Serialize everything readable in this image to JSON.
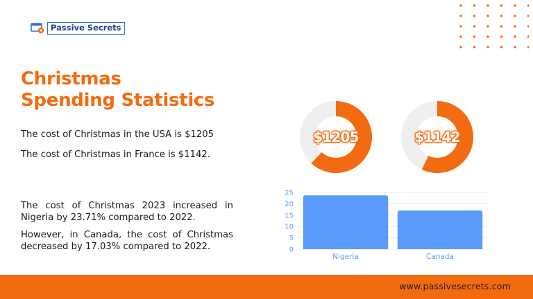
{
  "brand": {
    "logo_text": "Passive Secrets",
    "accent": "#f36b10",
    "logo_blue": "#2f6fd6"
  },
  "title": {
    "line1": "Christmas",
    "line2": "Spending Statistics"
  },
  "statements": {
    "usa": "The cost of Christmas in the USA is $1205",
    "france": "The cost of Christmas in France is $1142.",
    "nigeria": "The cost of Christmas 2023 increased in Nigeria by 23.71% compared to 2022.",
    "canada": "However, in Canada, the cost of Christmas decreased by 17.03% compared to 2022."
  },
  "footer": {
    "url": "www.passivesecrets.com"
  },
  "chart_data": [
    {
      "type": "pie",
      "label": "$1205",
      "fill_fraction": 0.62,
      "colors": {
        "fill": "#f36b10",
        "track": "#efefef"
      }
    },
    {
      "type": "pie",
      "label": "$1142",
      "fill_fraction": 0.57,
      "colors": {
        "fill": "#f36b10",
        "track": "#efefef"
      }
    },
    {
      "type": "bar",
      "categories": [
        "Nigeria",
        "Canada"
      ],
      "values": [
        23.71,
        17.03
      ],
      "ylim": [
        0,
        25
      ],
      "yticks": [
        "0",
        "5",
        "10",
        "15",
        "20",
        "25"
      ],
      "grid": true,
      "bar_color": "#5b9bfb",
      "tick_color": "#5b9bfb"
    }
  ]
}
